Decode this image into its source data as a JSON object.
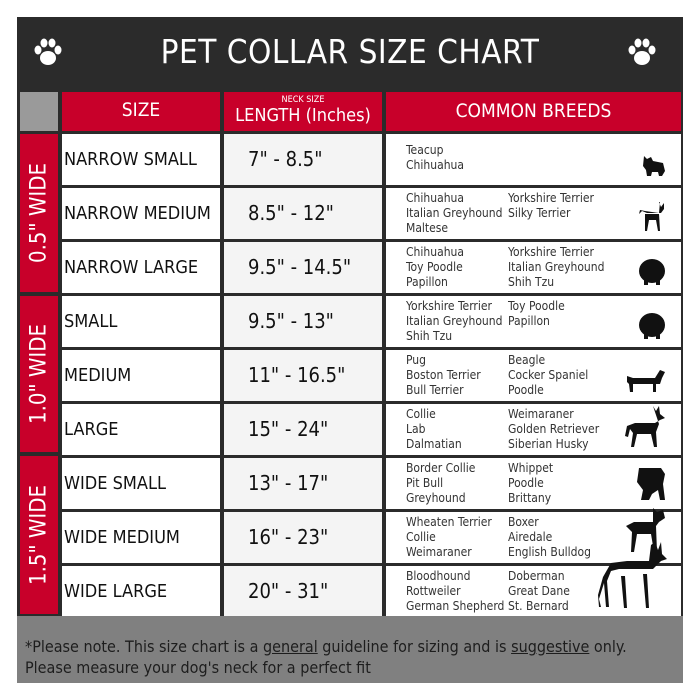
{
  "title": "PET COLLAR SIZE CHART",
  "header": {
    "size": "SIZE",
    "length_small": "NECK SIZE",
    "length": "LENGTH (Inches)",
    "breeds": "COMMON BREEDS"
  },
  "groups": [
    {
      "label": "0.5\" WIDE"
    },
    {
      "label": "1.0\" WIDE"
    },
    {
      "label": "1.5\" WIDE"
    }
  ],
  "rows": [
    {
      "size": "NARROW SMALL",
      "length": "7\" - 8.5\"",
      "col1": [
        "Teacup",
        "Chihuahua"
      ],
      "col2": [],
      "icon": "yorkie-icon"
    },
    {
      "size": "NARROW MEDIUM",
      "length": "8.5\" - 12\"",
      "col1": [
        "Chihuahua",
        "Italian Greyhound",
        "Maltese"
      ],
      "col2": [
        "Yorkshire Terrier",
        "Silky Terrier"
      ],
      "icon": "chihuahua-icon"
    },
    {
      "size": "NARROW LARGE",
      "length": "9.5\" - 14.5\"",
      "col1": [
        "Chihuahua",
        "Toy Poodle",
        "Papillon"
      ],
      "col2": [
        "Yorkshire Terrier",
        "Italian Greyhound",
        "Shih Tzu"
      ],
      "icon": "pomeranian-icon"
    },
    {
      "size": "SMALL",
      "length": "9.5\" - 13\"",
      "col1": [
        "Yorkshire Terrier",
        "Italian Greyhound",
        "Shih Tzu"
      ],
      "col2": [
        "Toy Poodle",
        "Papillon"
      ],
      "icon": "pomeranian-icon"
    },
    {
      "size": "MEDIUM",
      "length": "11\" - 16.5\"",
      "col1": [
        "Pug",
        "Boston Terrier",
        "Bull Terrier"
      ],
      "col2": [
        "Beagle",
        "Cocker Spaniel",
        "Poodle"
      ],
      "icon": "dachshund-icon"
    },
    {
      "size": "LARGE",
      "length": "15\" - 24\"",
      "col1": [
        "Collie",
        "Lab",
        "Dalmatian"
      ],
      "col2": [
        "Weimaraner",
        "Golden Retriever",
        "Siberian Husky"
      ],
      "icon": "shepherd-icon"
    },
    {
      "size": "WIDE SMALL",
      "length": "13\" - 17\"",
      "col1": [
        "Border Collie",
        "Pit Bull",
        "Greyhound"
      ],
      "col2": [
        "Whippet",
        "Poodle",
        "Brittany"
      ],
      "icon": "bulldog-icon"
    },
    {
      "size": "WIDE MEDIUM",
      "length": "16\" - 23\"",
      "col1": [
        "Wheaten Terrier",
        "Collie",
        "Weimaraner"
      ],
      "col2": [
        "Boxer",
        "Airedale",
        "English Bulldog"
      ],
      "icon": "pitbull-icon"
    },
    {
      "size": "WIDE LARGE",
      "length": "20\" - 31\"",
      "col1": [
        "Bloodhound",
        "Rottweiler",
        "German Shepherd"
      ],
      "col2": [
        "Doberman",
        "Great Dane",
        "St. Bernard"
      ],
      "icon": "doberman-icon"
    }
  ],
  "footer": {
    "p1": "*Please note. This size chart is a",
    "u1": "general",
    "p2": " guideline for sizing and is",
    "u2": "suggestive",
    "p3": " only.",
    "line2": "Please measure your dog's neck for a perfect fit"
  },
  "colors": {
    "accent": "#c8002a",
    "frame": "#2b2b2b",
    "footer": "#808080"
  }
}
